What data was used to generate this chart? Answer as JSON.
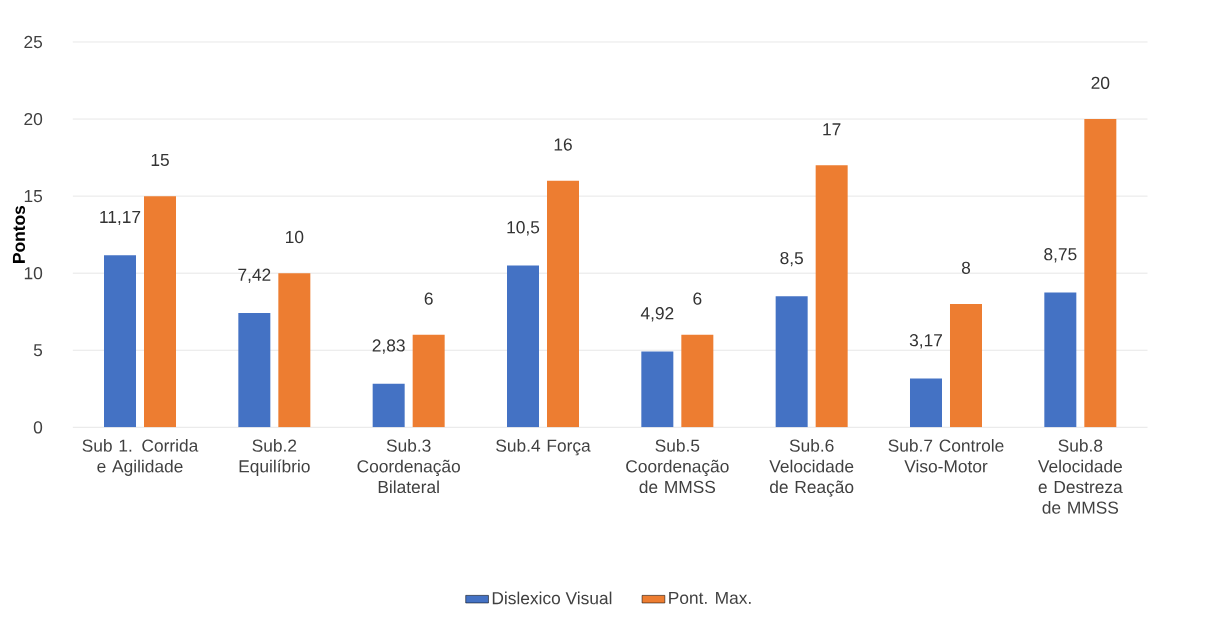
{
  "chart_data": {
    "type": "bar",
    "ylabel": "Pontos",
    "categories": [
      "Sub 1. Corrida e Agilidade",
      "Sub.2 Equilíbrio",
      "Sub.3 Coordenação Bilateral",
      "Sub.4 Força",
      "Sub.5 Coordenação de MMSS",
      "Sub.6 Velocidade de Reação",
      "Sub.7 Controle Viso-Motor",
      "Sub.8 Velocidade e Destreza de MMSS"
    ],
    "series": [
      {
        "name": "Dislexico Visual",
        "color": "#4472c4",
        "values": [
          11.17,
          7.42,
          2.83,
          10.5,
          4.92,
          8.5,
          3.17,
          8.75
        ],
        "value_labels": [
          "11,17",
          "7,42",
          "2,83",
          "10,5",
          "4,92",
          "8,5",
          "3,17",
          "8,75"
        ]
      },
      {
        "name": "Pont. Max.",
        "color": "#ed7d31",
        "values": [
          15,
          10,
          6,
          16,
          6,
          17,
          8,
          20
        ],
        "value_labels": [
          "15",
          "10",
          "6",
          "16",
          "6",
          "17",
          "8",
          "20"
        ]
      }
    ],
    "ylim": [
      0,
      25
    ],
    "yticks": [
      0,
      5,
      10,
      15,
      20,
      25
    ],
    "grid": "y",
    "legend": "bottom"
  }
}
